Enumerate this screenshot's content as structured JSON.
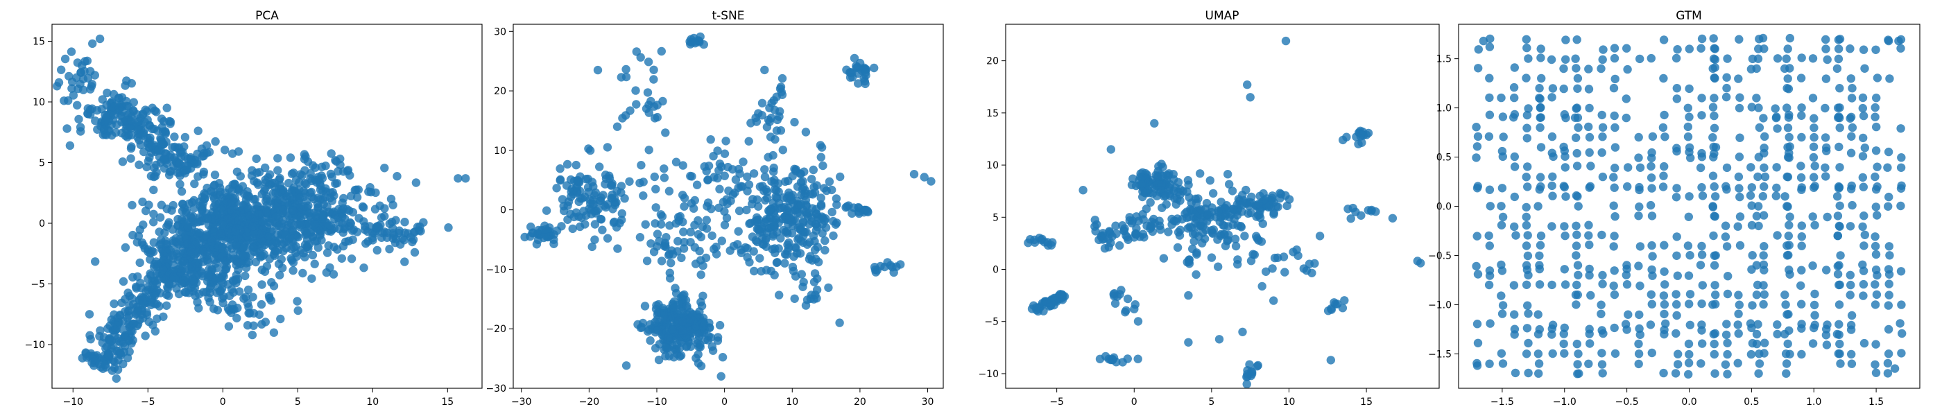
{
  "chart_data": [
    {
      "type": "scatter",
      "title": "PCA",
      "xlim": [
        -11.4,
        17.3
      ],
      "ylim": [
        -13.6,
        16.4
      ],
      "xticks": [
        -10,
        -5,
        0,
        5,
        10,
        15
      ],
      "yticks": [
        -10,
        -5,
        0,
        5,
        10,
        15
      ],
      "color": "#1f77b4",
      "clusters": [
        {
          "type": "band",
          "from": [
            -8.5,
            10.0
          ],
          "to": [
            -2.0,
            4.5
          ],
          "width": 2.0,
          "n": 240
        },
        {
          "type": "blob",
          "center": [
            -9.5,
            12.0
          ],
          "spread": [
            0.8,
            1.3
          ],
          "n": 30
        },
        {
          "type": "band",
          "from": [
            -8.5,
            -12.0
          ],
          "to": [
            -3.5,
            -3.5
          ],
          "width": 1.6,
          "n": 230
        },
        {
          "type": "band",
          "from": [
            -4.0,
            -4.0
          ],
          "to": [
            2.0,
            0.5
          ],
          "width": 3.5,
          "n": 400
        },
        {
          "type": "blob",
          "center": [
            3.0,
            0.5
          ],
          "spread": [
            3.5,
            2.0
          ],
          "n": 650
        },
        {
          "type": "band",
          "from": [
            5.0,
            0.0
          ],
          "to": [
            13.5,
            -1.0
          ],
          "width": 2.0,
          "n": 70
        },
        {
          "type": "blob",
          "center": [
            1.0,
            -7.0
          ],
          "spread": [
            1.8,
            1.0
          ],
          "n": 40
        },
        {
          "type": "blob",
          "center": [
            -1.0,
            -4.5
          ],
          "spread": [
            1.5,
            1.0
          ],
          "n": 40
        },
        {
          "type": "blob",
          "center": [
            6.5,
            4.5
          ],
          "spread": [
            1.0,
            0.8
          ],
          "n": 25
        }
      ],
      "points": [
        [
          15.7,
          3.7
        ],
        [
          16.2,
          3.7
        ],
        [
          13.0,
          -0.3
        ],
        [
          -8.2,
          15.2
        ],
        [
          -9.4,
          13.0
        ],
        [
          -10.6,
          10.1
        ],
        [
          -10.4,
          7.8
        ],
        [
          -10.2,
          6.4
        ],
        [
          -8.9,
          -7.5
        ],
        [
          -2.4,
          -1.3
        ],
        [
          -6.5,
          -2.0
        ]
      ]
    },
    {
      "type": "scatter",
      "title": "t-SNE",
      "xlim": [
        -31.2,
        32.3
      ],
      "ylim": [
        -30.0,
        31.2
      ],
      "xticks": [
        -30,
        -20,
        -10,
        0,
        10,
        20,
        30
      ],
      "yticks": [
        -30,
        -20,
        -10,
        0,
        10,
        20,
        30
      ],
      "color": "#1f77b4",
      "clusters": [
        {
          "type": "blob",
          "center": [
            -7.0,
            -20.0
          ],
          "spread": [
            2.3,
            2.3
          ],
          "n": 260
        },
        {
          "type": "blob",
          "center": [
            10.0,
            -1.0
          ],
          "spread": [
            3.5,
            4.5
          ],
          "n": 220
        },
        {
          "type": "blob",
          "center": [
            -20.0,
            2.0
          ],
          "spread": [
            3.0,
            3.5
          ],
          "n": 110
        },
        {
          "type": "blob",
          "center": [
            -27.0,
            -4.0
          ],
          "spread": [
            1.4,
            0.8
          ],
          "n": 30
        },
        {
          "type": "blob",
          "center": [
            20.0,
            23.0
          ],
          "spread": [
            1.0,
            0.8
          ],
          "n": 25
        },
        {
          "type": "blob",
          "center": [
            0.0,
            0.0
          ],
          "spread": [
            7.0,
            6.0
          ],
          "n": 160
        },
        {
          "type": "blob",
          "center": [
            -4.5,
            28.5
          ],
          "spread": [
            0.8,
            0.5
          ],
          "n": 12
        },
        {
          "type": "blob",
          "center": [
            -12.0,
            18.0
          ],
          "spread": [
            2.0,
            4.0
          ],
          "n": 25
        },
        {
          "type": "blob",
          "center": [
            7.0,
            18.0
          ],
          "spread": [
            1.5,
            3.0
          ],
          "n": 25
        },
        {
          "type": "blob",
          "center": [
            20.0,
            0.0
          ],
          "spread": [
            1.2,
            0.6
          ],
          "n": 15
        },
        {
          "type": "blob",
          "center": [
            24.0,
            -10.0
          ],
          "spread": [
            1.2,
            0.6
          ],
          "n": 12
        },
        {
          "type": "blob",
          "center": [
            12.0,
            -14.0
          ],
          "spread": [
            2.0,
            2.0
          ],
          "n": 15
        },
        {
          "type": "blob",
          "center": [
            -8.0,
            -5.0
          ],
          "spread": [
            2.5,
            2.5
          ],
          "n": 20
        }
      ],
      "points": [
        [
          29.5,
          5.5
        ],
        [
          28.0,
          6.0
        ],
        [
          30.5,
          4.8
        ],
        [
          -18.7,
          23.5
        ],
        [
          17.0,
          -19.0
        ],
        [
          -0.5,
          -28.0
        ],
        [
          -1.0,
          -22.0
        ]
      ]
    },
    {
      "type": "scatter",
      "title": "UMAP",
      "xlim": [
        -8.3,
        19.7
      ],
      "ylim": [
        -11.4,
        23.5
      ],
      "xticks": [
        -5,
        0,
        5,
        10,
        15
      ],
      "yticks": [
        -10,
        -5,
        0,
        5,
        10,
        15,
        20
      ],
      "color": "#1f77b4",
      "clusters": [
        {
          "type": "blob",
          "center": [
            1.5,
            8.2
          ],
          "spread": [
            0.9,
            0.9
          ],
          "n": 90
        },
        {
          "type": "band",
          "from": [
            -2.5,
            3.2
          ],
          "to": [
            10.0,
            6.8
          ],
          "width": 1.2,
          "n": 160
        },
        {
          "type": "blob",
          "center": [
            5.0,
            4.5
          ],
          "spread": [
            1.6,
            1.8
          ],
          "n": 90
        },
        {
          "type": "band",
          "from": [
            -6.5,
            -4.0
          ],
          "to": [
            -4.5,
            -2.4
          ],
          "width": 0.4,
          "n": 40
        },
        {
          "type": "blob",
          "center": [
            -6.0,
            2.6
          ],
          "spread": [
            0.6,
            0.2
          ],
          "n": 12
        },
        {
          "type": "blob",
          "center": [
            -1.2,
            -8.6
          ],
          "spread": [
            0.6,
            0.2
          ],
          "n": 12
        },
        {
          "type": "blob",
          "center": [
            7.5,
            -10.0
          ],
          "spread": [
            0.3,
            0.6
          ],
          "n": 12
        },
        {
          "type": "blob",
          "center": [
            14.5,
            12.8
          ],
          "spread": [
            0.4,
            0.5
          ],
          "n": 14
        },
        {
          "type": "blob",
          "center": [
            15.0,
            5.5
          ],
          "spread": [
            0.6,
            0.3
          ],
          "n": 10
        },
        {
          "type": "blob",
          "center": [
            -0.5,
            -3.0
          ],
          "spread": [
            0.6,
            0.8
          ],
          "n": 12
        },
        {
          "type": "blob",
          "center": [
            9.0,
            1.0
          ],
          "spread": [
            1.5,
            0.8
          ],
          "n": 20
        },
        {
          "type": "blob",
          "center": [
            13.0,
            -3.5
          ],
          "spread": [
            0.3,
            0.4
          ],
          "n": 8
        }
      ],
      "points": [
        [
          9.8,
          21.9
        ],
        [
          7.3,
          17.7
        ],
        [
          7.5,
          16.5
        ],
        [
          -1.5,
          11.5
        ],
        [
          1.3,
          14.0
        ],
        [
          -3.3,
          7.6
        ],
        [
          18.3,
          0.8
        ],
        [
          18.5,
          0.6
        ],
        [
          12.0,
          3.2
        ],
        [
          4.0,
          -0.5
        ],
        [
          5.5,
          -6.7
        ],
        [
          3.5,
          -7.0
        ],
        [
          0.0,
          -3.8
        ],
        [
          12.7,
          -8.7
        ],
        [
          9.0,
          -3.0
        ],
        [
          3.5,
          -2.5
        ],
        [
          7.0,
          -6.0
        ]
      ]
    },
    {
      "type": "grid-scatter",
      "title": "GTM",
      "xlim": [
        -1.85,
        1.85
      ],
      "ylim": [
        -1.85,
        1.85
      ],
      "xticks": [
        -1.5,
        -1.0,
        -0.5,
        0.0,
        0.5,
        1.0,
        1.5
      ],
      "yticks": [
        -1.5,
        -1.0,
        -0.5,
        0.0,
        0.5,
        1.0,
        1.5
      ],
      "color": "#1f77b4",
      "grid_min": -1.7,
      "grid_max": 1.7,
      "grid_step": 0.1,
      "occupancy": 0.42,
      "extra_rows": [
        0.92,
        0.55,
        0.18,
        -0.65,
        -1.25
      ],
      "extra_cols": [
        -1.2,
        -0.9,
        0.2,
        0.55,
        0.78,
        1.2
      ],
      "corner_points": [
        [
          -1.65,
          1.68
        ],
        [
          -1.6,
          1.62
        ],
        [
          1.6,
          1.68
        ],
        [
          1.68,
          1.68
        ],
        [
          -1.7,
          -1.62
        ],
        [
          1.65,
          -1.65
        ]
      ]
    }
  ]
}
